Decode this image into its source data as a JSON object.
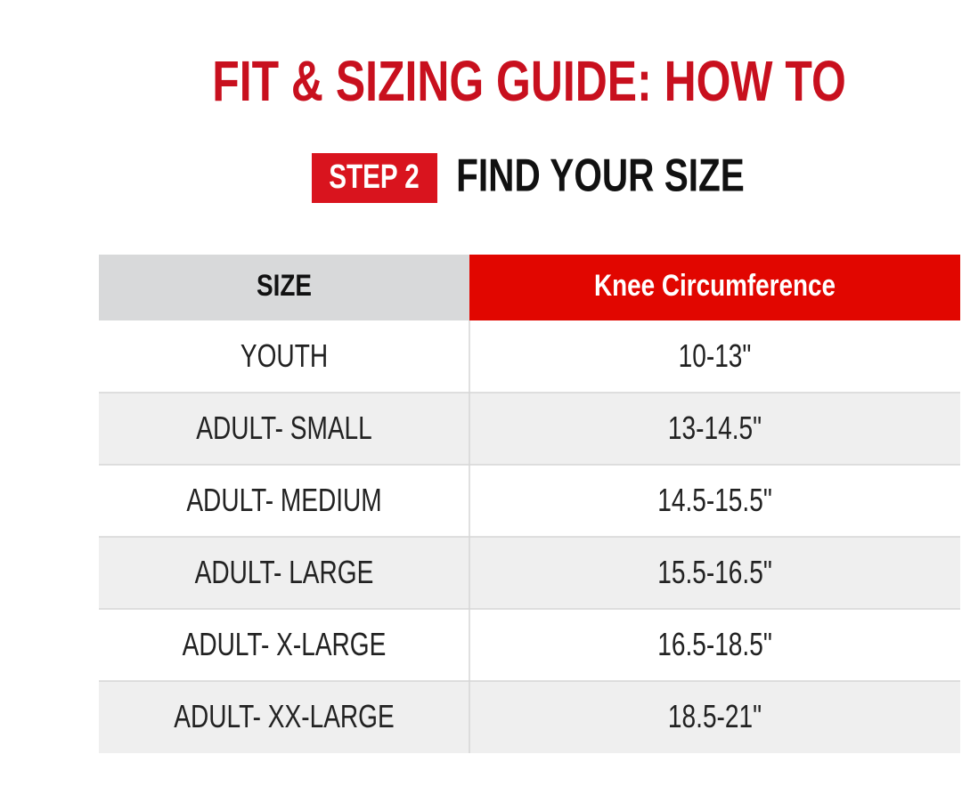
{
  "header": {
    "title": "FIT & SIZING GUIDE: HOW TO",
    "step_badge": "STEP 2",
    "step_title": "FIND YOUR SIZE"
  },
  "table": {
    "columns": [
      "SIZE",
      "Knee Circumference"
    ],
    "rows": [
      [
        "YOUTH",
        "10-13\""
      ],
      [
        "ADULT- SMALL",
        "13-14.5\""
      ],
      [
        "ADULT- MEDIUM",
        "14.5-15.5\""
      ],
      [
        "ADULT- LARGE",
        "15.5-16.5\""
      ],
      [
        "ADULT- X-LARGE",
        "16.5-18.5\""
      ],
      [
        "ADULT- XX-LARGE",
        "18.5-21\""
      ]
    ]
  }
}
